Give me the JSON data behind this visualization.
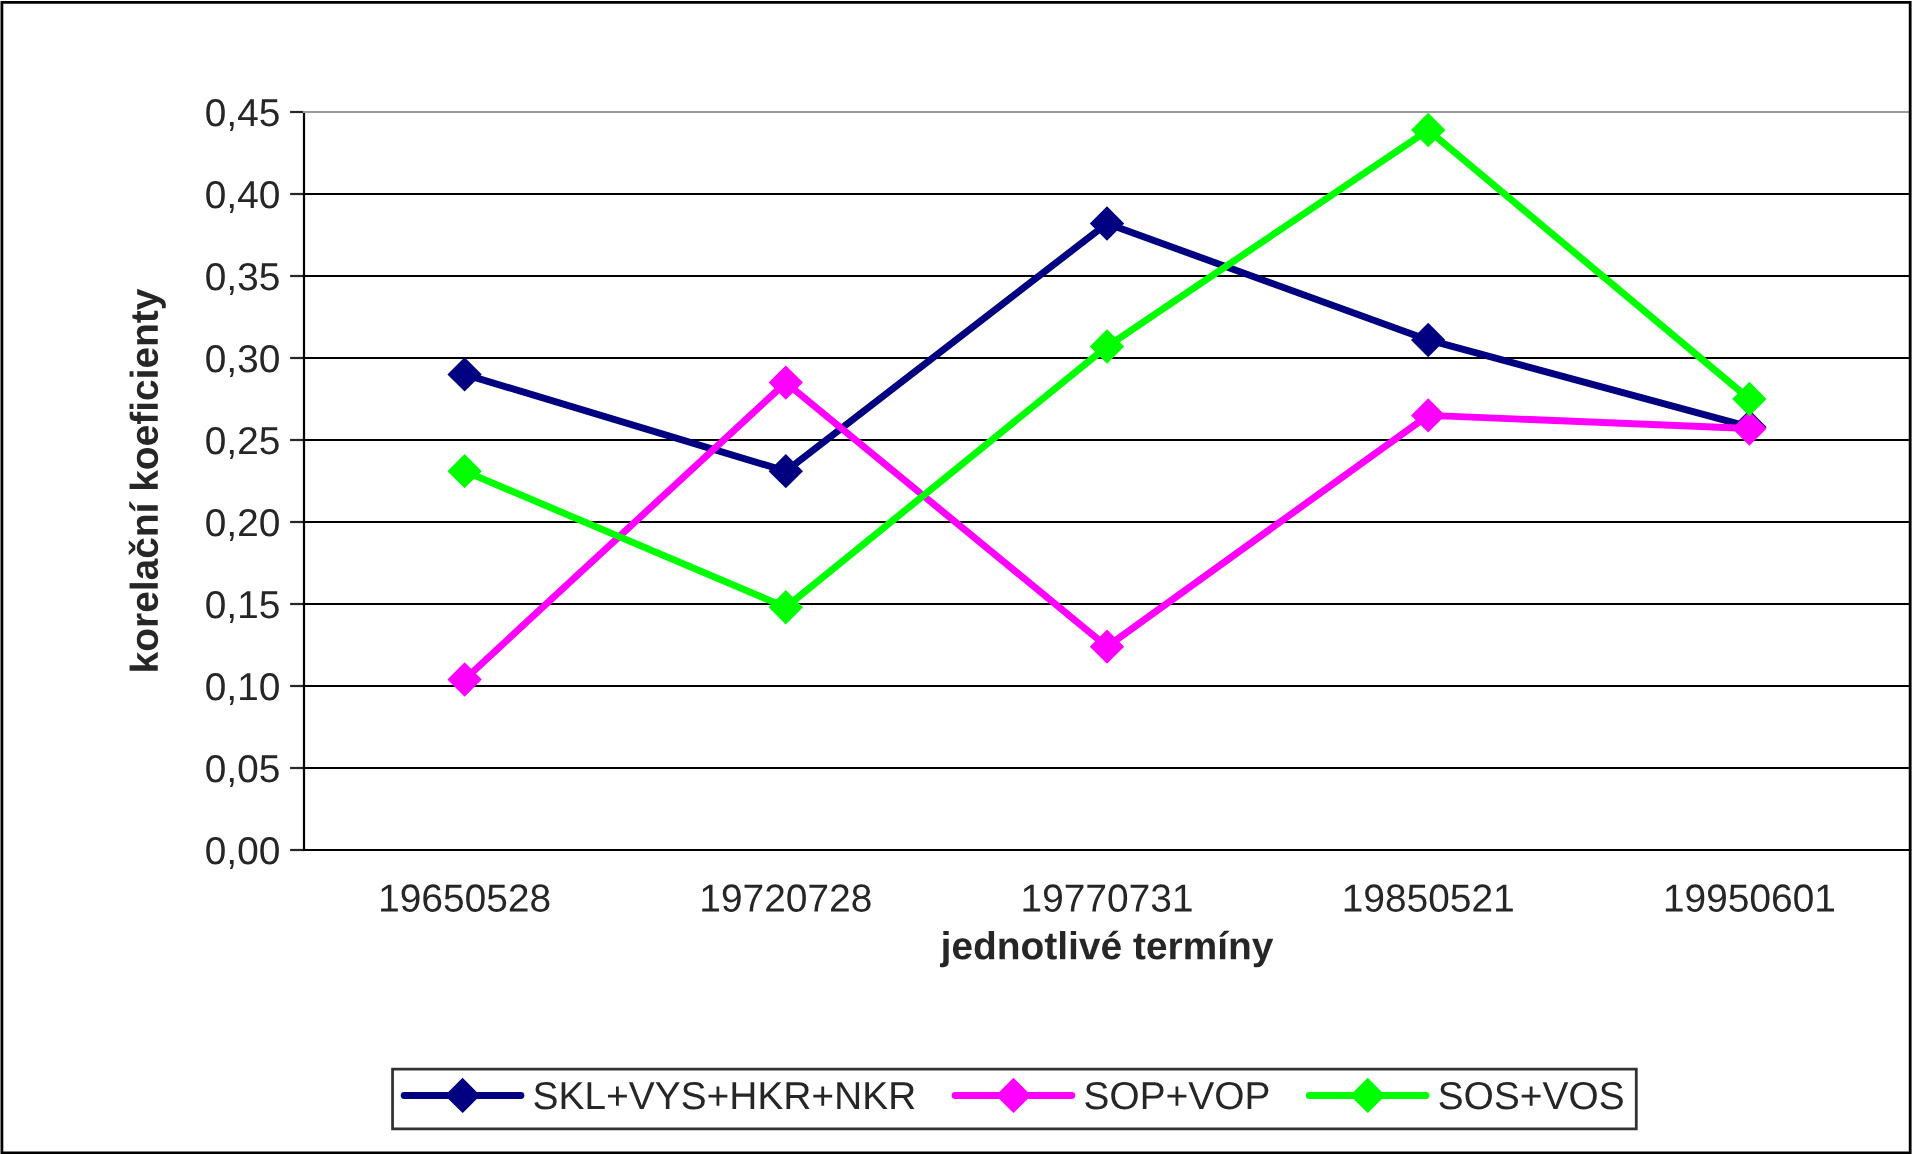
{
  "chart_data": {
    "type": "line",
    "xlabel": "jednotlivé termíny",
    "ylabel": "korelační koeficienty",
    "categories": [
      "19650528",
      "19720728",
      "19770731",
      "19850521",
      "19950601"
    ],
    "series": [
      {
        "name": "SKL+VYS+HKR+NKR",
        "color": "#000080",
        "values": [
          0.29,
          0.231,
          0.382,
          0.311,
          0.258
        ]
      },
      {
        "name": "SOP+VOP",
        "color": "#ff00ff",
        "values": [
          0.104,
          0.285,
          0.124,
          0.265,
          0.257
        ]
      },
      {
        "name": "SOS+VOS",
        "color": "#00ff00",
        "values": [
          0.231,
          0.148,
          0.307,
          0.439,
          0.275
        ]
      }
    ],
    "ylim": [
      0,
      0.45
    ],
    "yticks": [
      {
        "value": 0,
        "label": "0,00"
      },
      {
        "value": 0.05,
        "label": "0,05"
      },
      {
        "value": 0.1,
        "label": "0,10"
      },
      {
        "value": 0.15,
        "label": "0,15"
      },
      {
        "value": 0.2,
        "label": "0,20"
      },
      {
        "value": 0.25,
        "label": "0,25"
      },
      {
        "value": 0.3,
        "label": "0,30"
      },
      {
        "value": 0.35,
        "label": "0,35"
      },
      {
        "value": 0.4,
        "label": "0,40"
      },
      {
        "value": 0.45,
        "label": "0,45"
      }
    ],
    "grid": "y",
    "legend": "bottom",
    "marker": "diamond",
    "line_style": "solid"
  }
}
